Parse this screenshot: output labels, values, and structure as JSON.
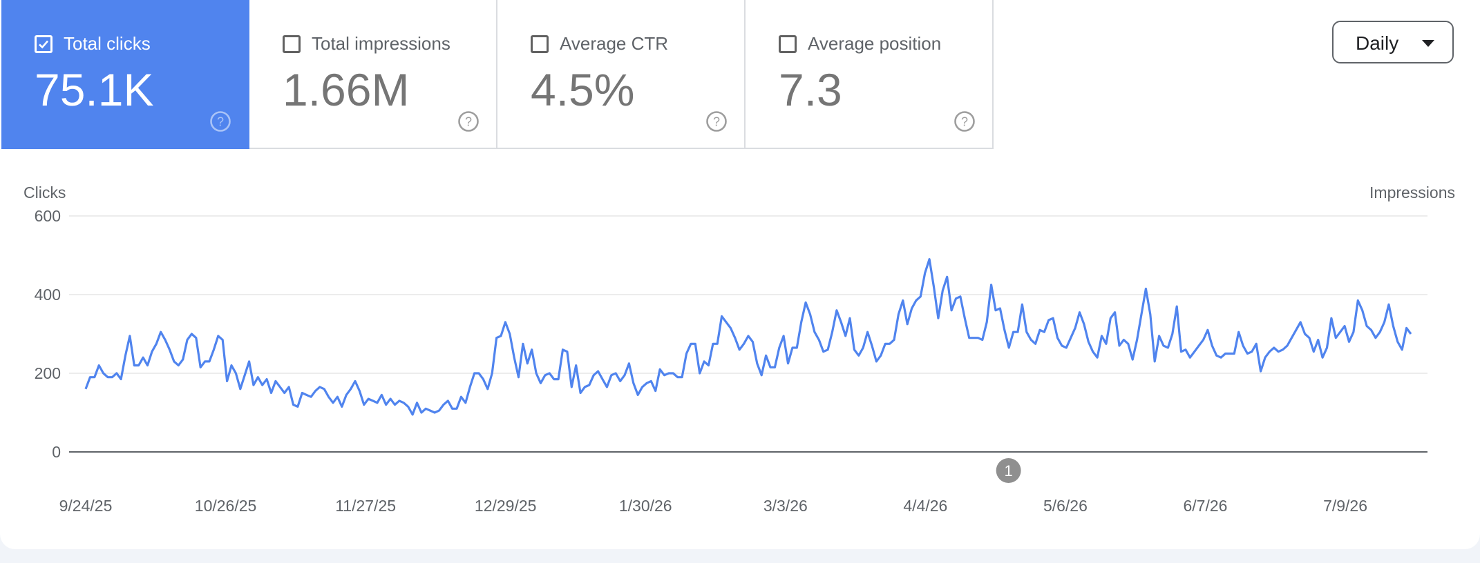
{
  "metrics": [
    {
      "label": "Total clicks",
      "value": "75.1K",
      "selected": true
    },
    {
      "label": "Total impressions",
      "value": "1.66M",
      "selected": false
    },
    {
      "label": "Average CTR",
      "value": "4.5%",
      "selected": false
    },
    {
      "label": "Average position",
      "value": "7.3",
      "selected": false
    }
  ],
  "dropdown": {
    "selected": "Daily"
  },
  "icons": {
    "checkbox_checked": "check-icon",
    "help": "help-circle-icon",
    "dropdown": "caret-down-icon"
  },
  "colors": {
    "accent": "#5084ee",
    "line": "#5084ee",
    "annotation": "#8f8f8f"
  },
  "chart_data": {
    "type": "line",
    "ylabel": "Clicks",
    "y2label": "Impressions",
    "ylim": [
      0,
      600
    ],
    "yticks": [
      "600",
      "400",
      "200",
      "0"
    ],
    "xticks": [
      "9/24/25",
      "10/26/25",
      "11/27/25",
      "12/29/25",
      "1/30/26",
      "3/3/26",
      "4/4/26",
      "5/6/26",
      "6/7/26",
      "7/9/26"
    ],
    "grid": true,
    "annotations": [
      {
        "label": "1",
        "date": "2026-04-23"
      }
    ],
    "x_start": "2025-09-24",
    "x_end": "2026-07-24",
    "series": [
      {
        "values": [
          160,
          190,
          190,
          220,
          200,
          190,
          190,
          200,
          185,
          245,
          295,
          220,
          220,
          240,
          220,
          255,
          275,
          305,
          285,
          260,
          230,
          220,
          235,
          285,
          300,
          290,
          215,
          230,
          230,
          260,
          295,
          285,
          180,
          220,
          200,
          160,
          195,
          230,
          170,
          190,
          170,
          185,
          150,
          180,
          165,
          150,
          165,
          120,
          115,
          150,
          145,
          140,
          155,
          165,
          160,
          140,
          125,
          140,
          115,
          145,
          160,
          180,
          155,
          120,
          135,
          130,
          125,
          145,
          120,
          135,
          120,
          130,
          125,
          115,
          95,
          125,
          100,
          110,
          105,
          100,
          105,
          120,
          130,
          110,
          110,
          140,
          125,
          165,
          200,
          200,
          185,
          160,
          200,
          290,
          295,
          330,
          300,
          240,
          190,
          275,
          225,
          260,
          200,
          175,
          195,
          200,
          185,
          185,
          260,
          255,
          165,
          220,
          150,
          165,
          170,
          195,
          205,
          185,
          165,
          195,
          200,
          180,
          195,
          225,
          175,
          145,
          165,
          175,
          180,
          155,
          210,
          195,
          200,
          200,
          190,
          190,
          250,
          275,
          275,
          200,
          230,
          220,
          275,
          275,
          345,
          330,
          315,
          290,
          260,
          275,
          295,
          280,
          225,
          195,
          245,
          215,
          215,
          265,
          295,
          225,
          265,
          265,
          330,
          380,
          350,
          305,
          285,
          255,
          260,
          305,
          360,
          330,
          295,
          340,
          260,
          245,
          265,
          305,
          270,
          230,
          245,
          275,
          275,
          285,
          350,
          385,
          325,
          365,
          385,
          395,
          455,
          490,
          420,
          340,
          410,
          445,
          360,
          390,
          395,
          340,
          290,
          290,
          290,
          285,
          330,
          425,
          360,
          365,
          310,
          265,
          305,
          305,
          375,
          305,
          285,
          275,
          310,
          305,
          335,
          340,
          290,
          270,
          265,
          290,
          315,
          355,
          325,
          280,
          255,
          240,
          295,
          275,
          340,
          355,
          270,
          285,
          275,
          235,
          285,
          350,
          415,
          350,
          230,
          295,
          270,
          265,
          300,
          370,
          255,
          260,
          240,
          255,
          270,
          285,
          310,
          270,
          245,
          240,
          250,
          250,
          250,
          305,
          270,
          250,
          255,
          275,
          205,
          240,
          255,
          265,
          255,
          260,
          270,
          290,
          310,
          330,
          300,
          290,
          255,
          285,
          240,
          265,
          340,
          290,
          305,
          320,
          280,
          305,
          385,
          360,
          320,
          310,
          290,
          305,
          330,
          375,
          320,
          280,
          260,
          315,
          300
        ]
      }
    ]
  }
}
